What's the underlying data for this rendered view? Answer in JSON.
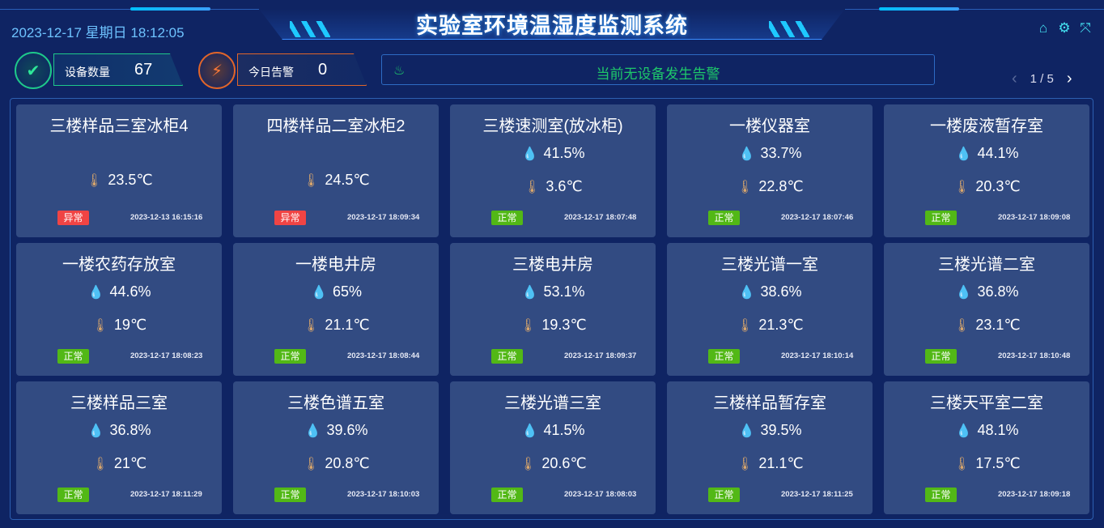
{
  "header": {
    "title": "实验室环境温湿度监测系统",
    "datetime": "2023-12-17 星期日 18:12:05"
  },
  "icons": {
    "home": "home-icon",
    "settings": "gear-icon",
    "fullscreen": "fullscreen-icon"
  },
  "stats": {
    "device_label": "设备数量",
    "device_count": "67",
    "alarm_label": "今日告警",
    "alarm_count": "0"
  },
  "alarm": {
    "message": "当前无设备发生告警"
  },
  "pager": {
    "text": "1 / 5"
  },
  "colors": {
    "normal": "#52b816",
    "abnormal": "#f04444",
    "alarm_text": "#1ec86a",
    "card": "#324b82"
  },
  "cards": [
    {
      "name": "三楼样品三室冰柜4",
      "humidity": null,
      "temp": "23.5℃",
      "status": "异常",
      "time": "2023-12-13 16:15:16"
    },
    {
      "name": "四楼样品二室冰柜2",
      "humidity": null,
      "temp": "24.5℃",
      "status": "异常",
      "time": "2023-12-17 18:09:34"
    },
    {
      "name": "三楼速测室(放冰柜)",
      "humidity": "41.5%",
      "temp": "3.6℃",
      "status": "正常",
      "time": "2023-12-17 18:07:48"
    },
    {
      "name": "一楼仪器室",
      "humidity": "33.7%",
      "temp": "22.8℃",
      "status": "正常",
      "time": "2023-12-17 18:07:46"
    },
    {
      "name": "一楼废液暂存室",
      "humidity": "44.1%",
      "temp": "20.3℃",
      "status": "正常",
      "time": "2023-12-17 18:09:08"
    },
    {
      "name": "一楼农药存放室",
      "humidity": "44.6%",
      "temp": "19℃",
      "status": "正常",
      "time": "2023-12-17 18:08:23"
    },
    {
      "name": "一楼电井房",
      "humidity": "65%",
      "temp": "21.1℃",
      "status": "正常",
      "time": "2023-12-17 18:08:44"
    },
    {
      "name": "三楼电井房",
      "humidity": "53.1%",
      "temp": "19.3℃",
      "status": "正常",
      "time": "2023-12-17 18:09:37"
    },
    {
      "name": "三楼光谱一室",
      "humidity": "38.6%",
      "temp": "21.3℃",
      "status": "正常",
      "time": "2023-12-17 18:10:14"
    },
    {
      "name": "三楼光谱二室",
      "humidity": "36.8%",
      "temp": "23.1℃",
      "status": "正常",
      "time": "2023-12-17 18:10:48"
    },
    {
      "name": "三楼样品三室",
      "humidity": "36.8%",
      "temp": "21℃",
      "status": "正常",
      "time": "2023-12-17 18:11:29"
    },
    {
      "name": "三楼色谱五室",
      "humidity": "39.6%",
      "temp": "20.8℃",
      "status": "正常",
      "time": "2023-12-17 18:10:03"
    },
    {
      "name": "三楼光谱三室",
      "humidity": "41.5%",
      "temp": "20.6℃",
      "status": "正常",
      "time": "2023-12-17 18:08:03"
    },
    {
      "name": "三楼样品暂存室",
      "humidity": "39.5%",
      "temp": "21.1℃",
      "status": "正常",
      "time": "2023-12-17 18:11:25"
    },
    {
      "name": "三楼天平室二室",
      "humidity": "48.1%",
      "temp": "17.5℃",
      "status": "正常",
      "time": "2023-12-17 18:09:18"
    }
  ]
}
